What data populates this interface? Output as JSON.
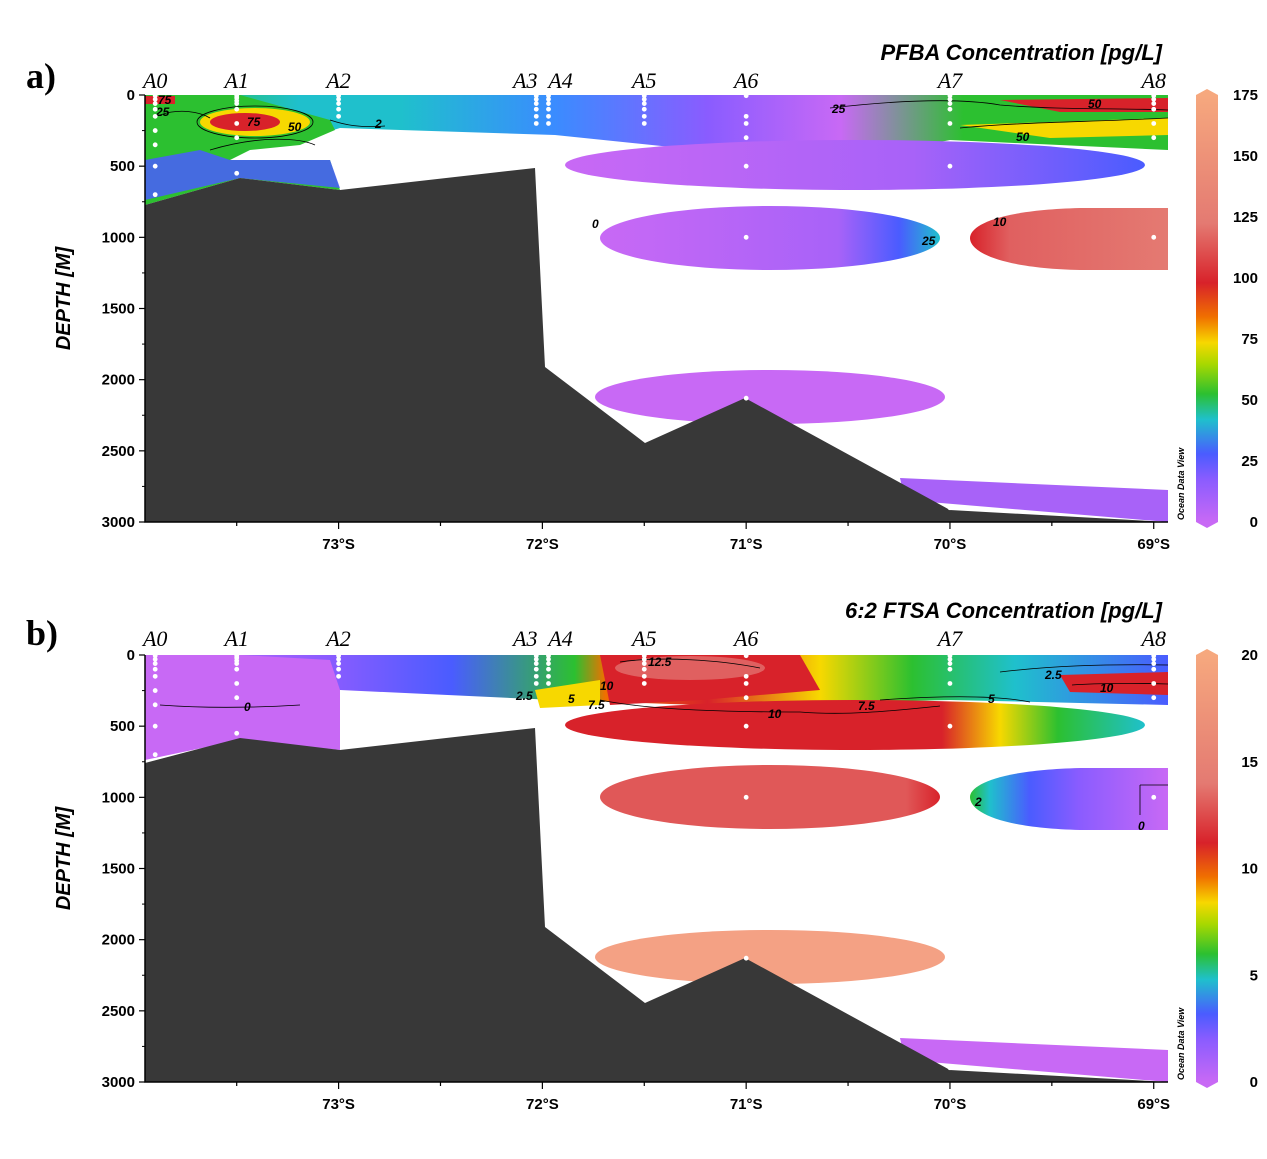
{
  "chart_data": [
    {
      "type": "heatmap",
      "panel": "a)",
      "title": "PFBA Concentration [pg/L]",
      "ylabel": "DEPTH [M]",
      "xlim": [
        -73.95,
        -68.93
      ],
      "ylim": [
        3000,
        0
      ],
      "x_ticks": [
        -73,
        -72,
        -71,
        -70,
        -69
      ],
      "x_tick_labels": [
        "73°S",
        "72°S",
        "71°S",
        "70°S",
        "69°S"
      ],
      "y_ticks": [
        0,
        500,
        1000,
        1500,
        2000,
        2500,
        3000
      ],
      "y_tick_labels": [
        "0",
        "500",
        "1000",
        "1500",
        "2000",
        "2500",
        "3000"
      ],
      "stations": [
        {
          "name": "A0",
          "lat": -73.9
        },
        {
          "name": "A1",
          "lat": -73.5
        },
        {
          "name": "A2",
          "lat": -73.0
        },
        {
          "name": "A3",
          "lat": -72.03
        },
        {
          "name": "A4",
          "lat": -71.97
        },
        {
          "name": "A5",
          "lat": -71.5
        },
        {
          "name": "A6",
          "lat": -71.0
        },
        {
          "name": "A7",
          "lat": -70.0
        },
        {
          "name": "A8",
          "lat": -69.0
        }
      ],
      "colorbar": {
        "min": 0,
        "max": 175,
        "ticks": [
          "0",
          "25",
          "50",
          "75",
          "100",
          "125",
          "150",
          "175"
        ],
        "colors": [
          "#c869f5",
          "#4a5cff",
          "#1fc0cc",
          "#2cc030",
          "#f7d800",
          "#f07000",
          "#d8222a",
          "#e47a72",
          "#f6a87e"
        ]
      },
      "contour_labels": [
        "75",
        "25",
        "75",
        "50",
        "2",
        "25",
        "50",
        "50",
        "0",
        "25",
        "10"
      ],
      "watermark": "Ocean Data View"
    },
    {
      "type": "heatmap",
      "panel": "b)",
      "title": "6:2 FTSA Concentration [pg/L]",
      "ylabel": "DEPTH [M]",
      "xlim": [
        -73.95,
        -68.93
      ],
      "ylim": [
        3000,
        0
      ],
      "x_ticks": [
        -73,
        -72,
        -71,
        -70,
        -69
      ],
      "x_tick_labels": [
        "73°S",
        "72°S",
        "71°S",
        "70°S",
        "69°S"
      ],
      "y_ticks": [
        0,
        500,
        1000,
        1500,
        2000,
        2500,
        3000
      ],
      "y_tick_labels": [
        "0",
        "500",
        "1000",
        "1500",
        "2000",
        "2500",
        "3000"
      ],
      "stations": [
        {
          "name": "A0",
          "lat": -73.9
        },
        {
          "name": "A1",
          "lat": -73.5
        },
        {
          "name": "A2",
          "lat": -73.0
        },
        {
          "name": "A3",
          "lat": -72.03
        },
        {
          "name": "A4",
          "lat": -71.97
        },
        {
          "name": "A5",
          "lat": -71.5
        },
        {
          "name": "A6",
          "lat": -71.0
        },
        {
          "name": "A7",
          "lat": -70.0
        },
        {
          "name": "A8",
          "lat": -69.0
        }
      ],
      "colorbar": {
        "min": 0,
        "max": 20,
        "ticks": [
          "0",
          "5",
          "10",
          "15",
          "20"
        ],
        "colors": [
          "#c869f5",
          "#4a5cff",
          "#1fc0cc",
          "#2cc030",
          "#f7d800",
          "#f07000",
          "#d8222a",
          "#e47a72",
          "#f6a87e"
        ]
      },
      "contour_labels": [
        "12.5",
        "0",
        "10",
        "7.5",
        "5",
        "2.5",
        "10",
        "2.5",
        "5",
        "7.5",
        "10",
        "0",
        "2"
      ],
      "watermark": "Ocean Data View"
    }
  ]
}
